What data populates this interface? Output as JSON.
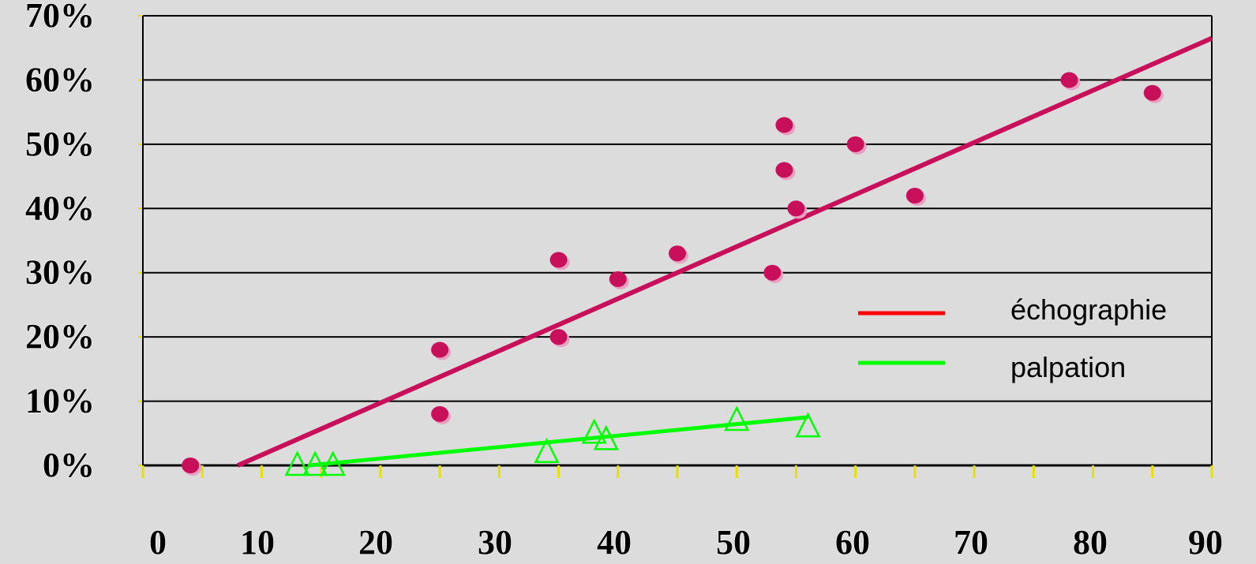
{
  "chart_data": {
    "type": "scatter",
    "xlim": [
      0,
      90
    ],
    "ylim": [
      0,
      70
    ],
    "grid": true,
    "legend_position": "right",
    "x_ticks": [
      "0",
      "10",
      "20",
      "30",
      "40",
      "50",
      "60",
      "70",
      "80",
      "90"
    ],
    "y_ticks": [
      "0%",
      "10%",
      "20%",
      "30%",
      "40%",
      "50%",
      "60%",
      "70%"
    ],
    "series": [
      {
        "name": "échographie",
        "marker": "circle",
        "color": "#c8105a",
        "points": [
          [
            4,
            0
          ],
          [
            25,
            8
          ],
          [
            25,
            18
          ],
          [
            35,
            20
          ],
          [
            35,
            32
          ],
          [
            40,
            29
          ],
          [
            45,
            33
          ],
          [
            53,
            30
          ],
          [
            54,
            46
          ],
          [
            54,
            53
          ],
          [
            55,
            40
          ],
          [
            60,
            50
          ],
          [
            65,
            42
          ],
          [
            78,
            60
          ],
          [
            85,
            58
          ]
        ],
        "trend": [
          [
            8,
            0
          ],
          [
            90,
            66.5
          ]
        ]
      },
      {
        "name": "palpation",
        "marker": "triangle",
        "color": "#00ff00",
        "points": [
          [
            13,
            0
          ],
          [
            14.5,
            0
          ],
          [
            16,
            0
          ],
          [
            34,
            2
          ],
          [
            38,
            5
          ],
          [
            39,
            4
          ],
          [
            50,
            7
          ],
          [
            56,
            6
          ]
        ],
        "trend": [
          [
            14,
            0
          ],
          [
            56,
            7.5
          ]
        ]
      }
    ],
    "legend": [
      {
        "label": "échographie",
        "color": "#ff0000"
      },
      {
        "label": "palpation",
        "color": "#00ff00"
      }
    ]
  }
}
